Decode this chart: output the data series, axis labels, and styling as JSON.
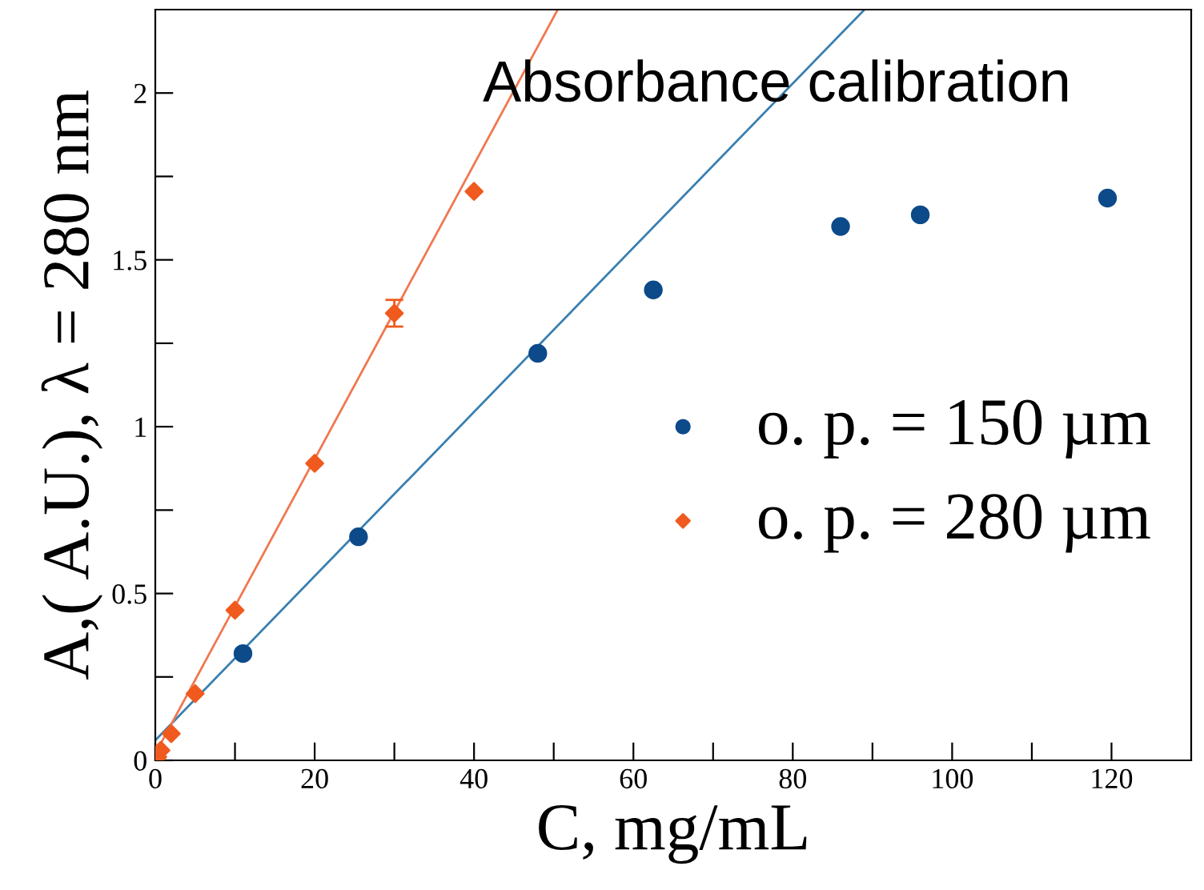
{
  "chart_data": {
    "type": "scatter",
    "title": "Absorbance calibration",
    "xlabel": "C, mg/mL",
    "ylabel": "A,( A.U.), λ = 280 nm",
    "xlim": [
      0,
      130
    ],
    "ylim": [
      0,
      2.25
    ],
    "xticks": [
      0,
      {
        "value": 10,
        "label": null
      },
      20,
      {
        "value": 30,
        "label": null
      },
      40,
      {
        "value": 50,
        "label": null
      },
      60,
      {
        "value": 70,
        "label": null
      },
      80,
      {
        "value": 90,
        "label": null
      },
      100,
      {
        "value": 110,
        "label": null
      },
      120
    ],
    "yticks": [
      0,
      {
        "value": 0.25,
        "label": null
      },
      0.5,
      {
        "value": 0.75,
        "label": null
      },
      1,
      {
        "value": 1.25,
        "label": null
      },
      1.5,
      {
        "value": 1.75,
        "label": null
      },
      2
    ],
    "grid": false,
    "legend": "right",
    "series": [
      {
        "name": "o. p. = 150 µm",
        "color": "#0d4a8a",
        "marker": "circle",
        "x": [
          11,
          25.5,
          48,
          62.5,
          86,
          96,
          119.5
        ],
        "values": [
          0.32,
          0.67,
          1.22,
          1.41,
          1.6,
          1.635,
          1.685
        ]
      },
      {
        "name": "o. p. = 280 µm",
        "color": "#f05a1e",
        "marker": "diamond",
        "x": [
          0.3,
          0.7,
          2,
          5,
          10,
          20,
          30,
          40
        ],
        "values": [
          0.01,
          0.03,
          0.08,
          0.2,
          0.45,
          0.89,
          1.34,
          1.705
        ],
        "errors": [
          null,
          null,
          null,
          null,
          null,
          null,
          0.04,
          null
        ]
      },
      {
        "type": "line",
        "color": "#3a7fb0",
        "x": [
          0,
          89
        ],
        "values": [
          0.06,
          2.25
        ]
      },
      {
        "type": "line",
        "color": "#f07850",
        "x": [
          0,
          50.5
        ],
        "values": [
          0.02,
          2.25
        ]
      }
    ]
  }
}
